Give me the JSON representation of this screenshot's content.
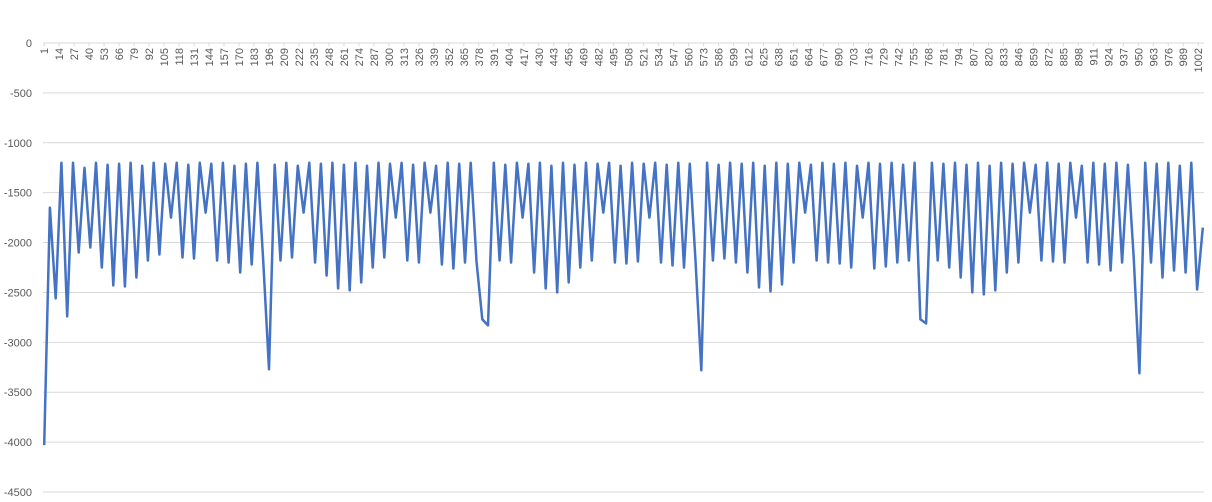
{
  "chart_data": {
    "type": "line",
    "color": "#4472c4",
    "grid": true,
    "xlim": [
      0,
      1007
    ],
    "ylim": [
      -4500,
      0
    ],
    "yticks": [
      0,
      -500,
      -1000,
      -1500,
      -2000,
      -2500,
      -3000,
      -3500,
      -4000,
      -4500
    ],
    "xticks": [
      1,
      14,
      27,
      40,
      53,
      66,
      79,
      92,
      105,
      118,
      131,
      144,
      157,
      170,
      183,
      196,
      209,
      222,
      235,
      248,
      261,
      274,
      287,
      300,
      313,
      326,
      339,
      352,
      365,
      378,
      391,
      404,
      417,
      430,
      443,
      456,
      469,
      482,
      495,
      508,
      521,
      534,
      547,
      560,
      573,
      586,
      599,
      612,
      625,
      638,
      651,
      664,
      677,
      690,
      703,
      716,
      729,
      742,
      755,
      768,
      781,
      794,
      807,
      820,
      833,
      846,
      859,
      872,
      885,
      898,
      911,
      924,
      937,
      950,
      963,
      976,
      989,
      1002
    ],
    "x": [
      1,
      6,
      11,
      16,
      21,
      26,
      31,
      36,
      41,
      46,
      51,
      56,
      61,
      66,
      71,
      76,
      81,
      86,
      91,
      96,
      101,
      106,
      111,
      116,
      121,
      126,
      131,
      136,
      141,
      146,
      151,
      156,
      161,
      166,
      171,
      176,
      181,
      186,
      191,
      196,
      201,
      206,
      211,
      216,
      221,
      226,
      231,
      236,
      241,
      246,
      251,
      256,
      261,
      266,
      271,
      276,
      281,
      286,
      291,
      296,
      301,
      306,
      311,
      316,
      321,
      326,
      331,
      336,
      341,
      346,
      351,
      356,
      361,
      366,
      371,
      376,
      381,
      386,
      391,
      396,
      401,
      406,
      411,
      416,
      421,
      426,
      431,
      436,
      441,
      446,
      451,
      456,
      461,
      466,
      471,
      476,
      481,
      486,
      491,
      496,
      501,
      506,
      511,
      516,
      521,
      526,
      531,
      536,
      541,
      546,
      551,
      556,
      561,
      566,
      571,
      576,
      581,
      586,
      591,
      596,
      601,
      606,
      611,
      616,
      621,
      626,
      631,
      636,
      641,
      646,
      651,
      656,
      661,
      666,
      671,
      676,
      681,
      686,
      691,
      696,
      701,
      706,
      711,
      716,
      721,
      726,
      731,
      736,
      741,
      746,
      751,
      756,
      761,
      766,
      771,
      776,
      781,
      786,
      791,
      796,
      801,
      806,
      811,
      816,
      821,
      826,
      831,
      836,
      841,
      846,
      851,
      856,
      861,
      866,
      871,
      876,
      881,
      886,
      891,
      896,
      901,
      906,
      911,
      916,
      921,
      926,
      931,
      936,
      941,
      946,
      951,
      956,
      961,
      966,
      971,
      976,
      981,
      986,
      991,
      996,
      1001,
      1006
    ],
    "values": [
      -4030,
      -1650,
      -2560,
      -1200,
      -2740,
      -1200,
      -2100,
      -1250,
      -2050,
      -1200,
      -2250,
      -1220,
      -2430,
      -1210,
      -2440,
      -1200,
      -2350,
      -1230,
      -2180,
      -1200,
      -2120,
      -1210,
      -1750,
      -1200,
      -2150,
      -1220,
      -2160,
      -1200,
      -1700,
      -1210,
      -2180,
      -1200,
      -2200,
      -1230,
      -2300,
      -1210,
      -2220,
      -1200,
      -2180,
      -3270,
      -1220,
      -2180,
      -1200,
      -2150,
      -1230,
      -1700,
      -1200,
      -2200,
      -1210,
      -2330,
      -1200,
      -2460,
      -1220,
      -2480,
      -1200,
      -2400,
      -1230,
      -2250,
      -1200,
      -2150,
      -1210,
      -1750,
      -1200,
      -2180,
      -1220,
      -2200,
      -1200,
      -1700,
      -1230,
      -2220,
      -1200,
      -2260,
      -1210,
      -2200,
      -1200,
      -2190,
      -2770,
      -2830,
      -1200,
      -2180,
      -1220,
      -2200,
      -1200,
      -1750,
      -1210,
      -2300,
      -1200,
      -2460,
      -1230,
      -2500,
      -1200,
      -2400,
      -1220,
      -2250,
      -1200,
      -2180,
      -1210,
      -1700,
      -1200,
      -2200,
      -1230,
      -2210,
      -1200,
      -2190,
      -1210,
      -1750,
      -1200,
      -2200,
      -1220,
      -2230,
      -1200,
      -2250,
      -1210,
      -2200,
      -3280,
      -1200,
      -2180,
      -1220,
      -2160,
      -1200,
      -2200,
      -1210,
      -2300,
      -1200,
      -2450,
      -1230,
      -2490,
      -1200,
      -2420,
      -1210,
      -2200,
      -1200,
      -1700,
      -1220,
      -2180,
      -1200,
      -2200,
      -1210,
      -2210,
      -1200,
      -2250,
      -1230,
      -1750,
      -1200,
      -2260,
      -1210,
      -2240,
      -1200,
      -2200,
      -1220,
      -2180,
      -1200,
      -2770,
      -2810,
      -1200,
      -2180,
      -1210,
      -2250,
      -1200,
      -2350,
      -1220,
      -2500,
      -1200,
      -2520,
      -1230,
      -2480,
      -1200,
      -2300,
      -1210,
      -2200,
      -1200,
      -1700,
      -1220,
      -2180,
      -1200,
      -2190,
      -1210,
      -2200,
      -1200,
      -1750,
      -1230,
      -2200,
      -1200,
      -2220,
      -1210,
      -2280,
      -1200,
      -2200,
      -1220,
      -2150,
      -3310,
      -1200,
      -2200,
      -1210,
      -2350,
      -1200,
      -2280,
      -1230,
      -2300,
      -1200,
      -2470,
      -1850
    ]
  }
}
